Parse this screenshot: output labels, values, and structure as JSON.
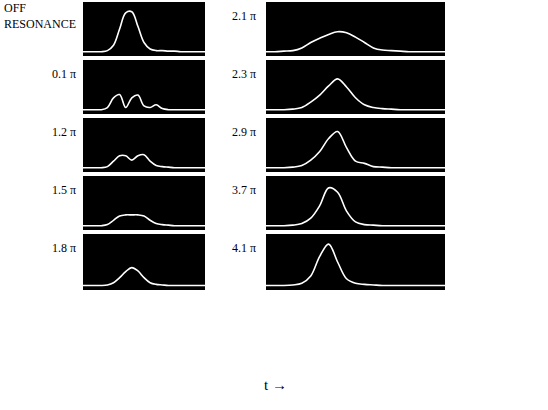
{
  "chart_data": [
    {
      "type": "line",
      "title": "OFF RESONANCE",
      "color": "#ffffff",
      "tick_labels": false,
      "x": [
        0,
        0.5,
        1,
        1.5,
        2,
        2.5,
        3,
        3.5,
        4,
        4.5,
        5,
        5.5,
        6,
        6.5,
        7,
        7.5,
        8,
        8.5,
        9,
        9.5,
        10
      ],
      "values": [
        0.08,
        0.08,
        0.08,
        0.08,
        0.1,
        0.2,
        0.5,
        0.8,
        0.82,
        0.55,
        0.25,
        0.13,
        0.1,
        0.1,
        0.09,
        0.09,
        0.08,
        0.08,
        0.08,
        0.08,
        0.08
      ],
      "xlim": [
        0,
        10
      ],
      "ylim": [
        0,
        1
      ],
      "xticks": [],
      "yticks": []
    },
    {
      "type": "line",
      "title": "0.1 π",
      "color": "#ffffff",
      "tick_labels": false,
      "x": [
        0,
        0.5,
        1,
        1.5,
        2,
        2.5,
        3,
        3.5,
        4,
        4.5,
        5,
        5.5,
        6,
        6.5,
        7,
        7.5,
        8,
        8.5,
        9,
        9.5,
        10
      ],
      "values": [
        0.08,
        0.08,
        0.08,
        0.08,
        0.12,
        0.3,
        0.36,
        0.12,
        0.3,
        0.35,
        0.15,
        0.12,
        0.17,
        0.1,
        0.08,
        0.08,
        0.08,
        0.08,
        0.08,
        0.08,
        0.08
      ],
      "xlim": [
        0,
        10
      ],
      "ylim": [
        0,
        1
      ],
      "xticks": [],
      "yticks": []
    },
    {
      "type": "line",
      "title": "1.2 π",
      "color": "#ffffff",
      "tick_labels": false,
      "x": [
        0,
        0.5,
        1,
        1.5,
        2,
        2.5,
        3,
        3.5,
        4,
        4.5,
        5,
        5.5,
        6,
        6.5,
        7,
        7.5,
        8,
        8.5,
        9,
        9.5,
        10
      ],
      "values": [
        0.08,
        0.08,
        0.08,
        0.08,
        0.1,
        0.2,
        0.3,
        0.3,
        0.22,
        0.3,
        0.32,
        0.2,
        0.12,
        0.1,
        0.09,
        0.08,
        0.08,
        0.08,
        0.08,
        0.08,
        0.08
      ],
      "xlim": [
        0,
        10
      ],
      "ylim": [
        0,
        1
      ],
      "xticks": [],
      "yticks": []
    },
    {
      "type": "line",
      "title": "1.5 π",
      "color": "#ffffff",
      "tick_labels": false,
      "x": [
        0,
        0.5,
        1,
        1.5,
        2,
        2.5,
        3,
        3.5,
        4,
        4.5,
        5,
        5.5,
        6,
        6.5,
        7,
        7.5,
        8,
        8.5,
        9,
        9.5,
        10
      ],
      "values": [
        0.08,
        0.08,
        0.08,
        0.08,
        0.1,
        0.18,
        0.26,
        0.28,
        0.28,
        0.28,
        0.26,
        0.18,
        0.12,
        0.1,
        0.09,
        0.08,
        0.08,
        0.08,
        0.08,
        0.08,
        0.08
      ],
      "xlim": [
        0,
        10
      ],
      "ylim": [
        0,
        1
      ],
      "xticks": [],
      "yticks": []
    },
    {
      "type": "line",
      "title": "1.8 π",
      "color": "#ffffff",
      "tick_labels": false,
      "x": [
        0,
        0.5,
        1,
        1.5,
        2,
        2.5,
        3,
        3.5,
        4,
        4.5,
        5,
        5.5,
        6,
        6.5,
        7,
        7.5,
        8,
        8.5,
        9,
        9.5,
        10
      ],
      "values": [
        0.08,
        0.08,
        0.08,
        0.08,
        0.09,
        0.13,
        0.22,
        0.33,
        0.4,
        0.34,
        0.22,
        0.13,
        0.1,
        0.09,
        0.08,
        0.08,
        0.08,
        0.08,
        0.08,
        0.08,
        0.08
      ],
      "xlim": [
        0,
        10
      ],
      "ylim": [
        0,
        1
      ],
      "xticks": [],
      "yticks": []
    },
    {
      "type": "line",
      "title": "2.1 π",
      "color": "#ffffff",
      "tick_labels": false,
      "x": [
        0,
        0.5,
        1,
        1.5,
        2,
        2.5,
        3,
        3.5,
        4,
        4.5,
        5,
        5.5,
        6,
        6.5,
        7,
        7.5,
        8,
        8.5,
        9,
        9.5,
        10
      ],
      "values": [
        0.08,
        0.08,
        0.09,
        0.1,
        0.15,
        0.25,
        0.33,
        0.4,
        0.45,
        0.43,
        0.35,
        0.25,
        0.15,
        0.11,
        0.1,
        0.09,
        0.08,
        0.08,
        0.08,
        0.08,
        0.08
      ],
      "xlim": [
        0,
        10
      ],
      "ylim": [
        0,
        1
      ],
      "xticks": [],
      "yticks": []
    },
    {
      "type": "line",
      "title": "2.3 π",
      "color": "#ffffff",
      "tick_labels": false,
      "x": [
        0,
        0.5,
        1,
        1.5,
        2,
        2.5,
        3,
        3.5,
        4,
        4.5,
        5,
        5.5,
        6,
        6.5,
        7,
        7.5,
        8,
        8.5,
        9,
        9.5,
        10
      ],
      "values": [
        0.08,
        0.08,
        0.08,
        0.09,
        0.12,
        0.22,
        0.35,
        0.52,
        0.65,
        0.5,
        0.3,
        0.17,
        0.12,
        0.1,
        0.09,
        0.08,
        0.08,
        0.08,
        0.08,
        0.08,
        0.08
      ],
      "xlim": [
        0,
        10
      ],
      "ylim": [
        0,
        1
      ],
      "xticks": [],
      "yticks": []
    },
    {
      "type": "line",
      "title": "2.9 π",
      "color": "#ffffff",
      "tick_labels": false,
      "x": [
        0,
        0.5,
        1,
        1.5,
        2,
        2.5,
        3,
        3.5,
        4,
        4.5,
        5,
        5.5,
        6,
        6.5,
        7,
        7.5,
        8,
        8.5,
        9,
        9.5,
        10
      ],
      "values": [
        0.08,
        0.08,
        0.08,
        0.09,
        0.12,
        0.22,
        0.38,
        0.62,
        0.75,
        0.45,
        0.2,
        0.16,
        0.1,
        0.09,
        0.08,
        0.08,
        0.08,
        0.08,
        0.08,
        0.08,
        0.08
      ],
      "xlim": [
        0,
        10
      ],
      "ylim": [
        0,
        1
      ],
      "xticks": [],
      "yticks": []
    },
    {
      "type": "line",
      "title": "3.7 π",
      "color": "#ffffff",
      "tick_labels": false,
      "x": [
        0,
        0.5,
        1,
        1.5,
        2,
        2.5,
        3,
        3.5,
        4,
        4.5,
        5,
        5.5,
        6,
        6.5,
        7,
        7.5,
        8,
        8.5,
        9,
        9.5,
        10
      ],
      "values": [
        0.08,
        0.08,
        0.08,
        0.09,
        0.12,
        0.22,
        0.45,
        0.78,
        0.7,
        0.35,
        0.15,
        0.1,
        0.09,
        0.08,
        0.08,
        0.08,
        0.08,
        0.08,
        0.08,
        0.08,
        0.08
      ],
      "xlim": [
        0,
        10
      ],
      "ylim": [
        0,
        1
      ],
      "xticks": [],
      "yticks": []
    },
    {
      "type": "line",
      "title": "4.1 π",
      "color": "#ffffff",
      "tick_labels": false,
      "x": [
        0,
        0.5,
        1,
        1.5,
        2,
        2.5,
        3,
        3.5,
        4,
        4.5,
        5,
        5.5,
        6,
        6.5,
        7,
        7.5,
        8,
        8.5,
        9,
        9.5,
        10
      ],
      "values": [
        0.08,
        0.08,
        0.08,
        0.09,
        0.12,
        0.25,
        0.6,
        0.82,
        0.5,
        0.2,
        0.12,
        0.1,
        0.09,
        0.08,
        0.08,
        0.08,
        0.08,
        0.08,
        0.08,
        0.08,
        0.08
      ],
      "xlim": [
        0,
        10
      ],
      "ylim": [
        0,
        1
      ],
      "xticks": [],
      "yticks": []
    }
  ],
  "x_label": "t →"
}
